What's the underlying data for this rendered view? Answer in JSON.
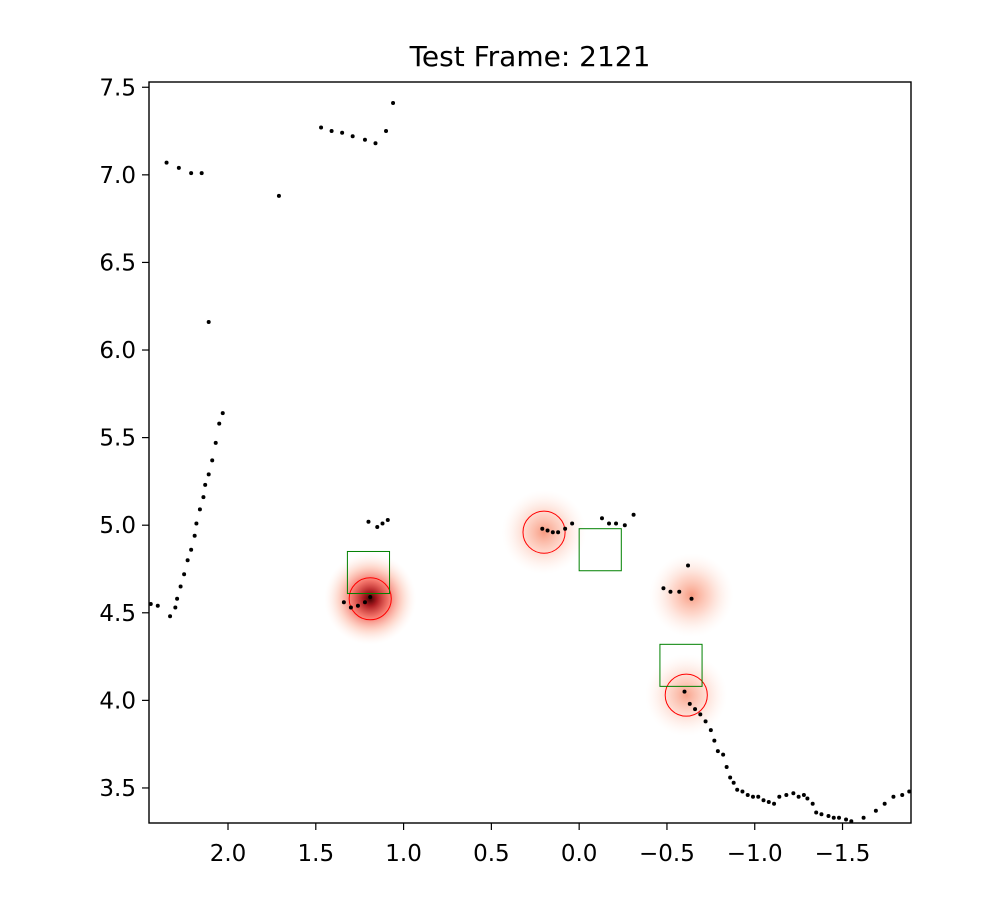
{
  "chart_data": {
    "type": "scatter",
    "title": "Test Frame: 2121",
    "xlabel": "",
    "ylabel": "",
    "xlim": [
      2.45,
      -1.89
    ],
    "ylim": [
      3.3,
      7.53
    ],
    "x_inverted": true,
    "grid": false,
    "x_ticks": [
      2.0,
      1.5,
      1.0,
      0.5,
      0.0,
      -0.5,
      -1.0,
      -1.5
    ],
    "x_tick_labels": [
      "2.0",
      "1.5",
      "1.0",
      "0.5",
      "0.0",
      "−0.5",
      "−1.0",
      "−1.5"
    ],
    "y_ticks": [
      3.5,
      4.0,
      4.5,
      5.0,
      5.5,
      6.0,
      6.5,
      7.0,
      7.5
    ],
    "y_tick_labels": [
      "3.5",
      "4.0",
      "4.5",
      "5.0",
      "5.5",
      "6.0",
      "6.5",
      "7.0",
      "7.5"
    ],
    "colors": {
      "points": "#000000",
      "circles": "#ff0000",
      "squares": "#008000",
      "heat_low": "#fee0d2",
      "heat_high": "#a50f15",
      "heat_peak": "#400000"
    },
    "heatmap_blobs": [
      {
        "x": 1.19,
        "y": 4.58,
        "intensity": 1.0
      },
      {
        "x": 0.2,
        "y": 4.96,
        "intensity": 0.45
      },
      {
        "x": -0.64,
        "y": 4.6,
        "intensity": 0.42
      },
      {
        "x": -0.61,
        "y": 4.03,
        "intensity": 0.3
      }
    ],
    "predicted_circles": [
      {
        "x": 1.19,
        "y": 4.58,
        "r": 0.12
      },
      {
        "x": 0.2,
        "y": 4.96,
        "r": 0.12
      },
      {
        "x": -0.61,
        "y": 4.03,
        "r": 0.12
      }
    ],
    "target_squares": [
      {
        "x": 1.2,
        "y": 4.73,
        "half": 0.12
      },
      {
        "x": -0.12,
        "y": 4.86,
        "half": 0.12
      },
      {
        "x": -0.58,
        "y": 4.2,
        "half": 0.12
      }
    ],
    "points": [
      [
        2.44,
        4.55
      ],
      [
        2.4,
        4.54
      ],
      [
        2.33,
        4.48
      ],
      [
        2.3,
        4.53
      ],
      [
        2.29,
        4.58
      ],
      [
        2.27,
        4.65
      ],
      [
        2.25,
        4.72
      ],
      [
        2.23,
        4.8
      ],
      [
        2.21,
        4.86
      ],
      [
        2.19,
        4.94
      ],
      [
        2.18,
        5.01
      ],
      [
        2.16,
        5.09
      ],
      [
        2.14,
        5.16
      ],
      [
        2.13,
        5.23
      ],
      [
        2.11,
        5.29
      ],
      [
        2.09,
        5.37
      ],
      [
        2.07,
        5.47
      ],
      [
        2.05,
        5.58
      ],
      [
        2.03,
        5.64
      ],
      [
        2.11,
        6.16
      ],
      [
        1.71,
        6.88
      ],
      [
        2.35,
        7.07
      ],
      [
        2.28,
        7.04
      ],
      [
        2.21,
        7.01
      ],
      [
        2.15,
        7.01
      ],
      [
        1.47,
        7.27
      ],
      [
        1.41,
        7.25
      ],
      [
        1.35,
        7.24
      ],
      [
        1.29,
        7.22
      ],
      [
        1.22,
        7.2
      ],
      [
        1.16,
        7.18
      ],
      [
        1.1,
        7.25
      ],
      [
        1.06,
        7.41
      ],
      [
        1.2,
        5.02
      ],
      [
        1.15,
        4.99
      ],
      [
        1.12,
        5.01
      ],
      [
        1.09,
        5.03
      ],
      [
        1.34,
        4.56
      ],
      [
        1.3,
        4.53
      ],
      [
        1.26,
        4.54
      ],
      [
        1.22,
        4.56
      ],
      [
        1.19,
        4.59
      ],
      [
        0.21,
        4.98
      ],
      [
        0.18,
        4.97
      ],
      [
        0.15,
        4.96
      ],
      [
        0.12,
        4.96
      ],
      [
        0.08,
        4.98
      ],
      [
        0.04,
        5.01
      ],
      [
        -0.13,
        5.04
      ],
      [
        -0.17,
        5.01
      ],
      [
        -0.21,
        5.01
      ],
      [
        -0.26,
        5.0
      ],
      [
        -0.31,
        5.06
      ],
      [
        -0.48,
        4.64
      ],
      [
        -0.52,
        4.62
      ],
      [
        -0.57,
        4.62
      ],
      [
        -0.62,
        4.77
      ],
      [
        -0.64,
        4.58
      ],
      [
        -0.6,
        4.05
      ],
      [
        -0.63,
        3.98
      ],
      [
        -0.66,
        3.95
      ],
      [
        -0.69,
        3.92
      ],
      [
        -0.72,
        3.88
      ],
      [
        -0.75,
        3.83
      ],
      [
        -0.77,
        3.77
      ],
      [
        -0.79,
        3.71
      ],
      [
        -0.82,
        3.69
      ],
      [
        -0.84,
        3.62
      ],
      [
        -0.86,
        3.56
      ],
      [
        -0.88,
        3.53
      ],
      [
        -0.9,
        3.49
      ],
      [
        -0.93,
        3.48
      ],
      [
        -0.96,
        3.46
      ],
      [
        -0.99,
        3.45
      ],
      [
        -1.02,
        3.45
      ],
      [
        -1.05,
        3.43
      ],
      [
        -1.08,
        3.42
      ],
      [
        -1.11,
        3.41
      ],
      [
        -1.14,
        3.45
      ],
      [
        -1.18,
        3.46
      ],
      [
        -1.22,
        3.47
      ],
      [
        -1.25,
        3.45
      ],
      [
        -1.28,
        3.46
      ],
      [
        -1.3,
        3.44
      ],
      [
        -1.33,
        3.41
      ],
      [
        -1.35,
        3.36
      ],
      [
        -1.38,
        3.35
      ],
      [
        -1.42,
        3.34
      ],
      [
        -1.45,
        3.33
      ],
      [
        -1.48,
        3.33
      ],
      [
        -1.52,
        3.32
      ],
      [
        -1.55,
        3.31
      ],
      [
        -1.62,
        3.33
      ],
      [
        -1.69,
        3.37
      ],
      [
        -1.74,
        3.41
      ],
      [
        -1.79,
        3.45
      ],
      [
        -1.84,
        3.46
      ],
      [
        -1.88,
        3.48
      ]
    ]
  }
}
